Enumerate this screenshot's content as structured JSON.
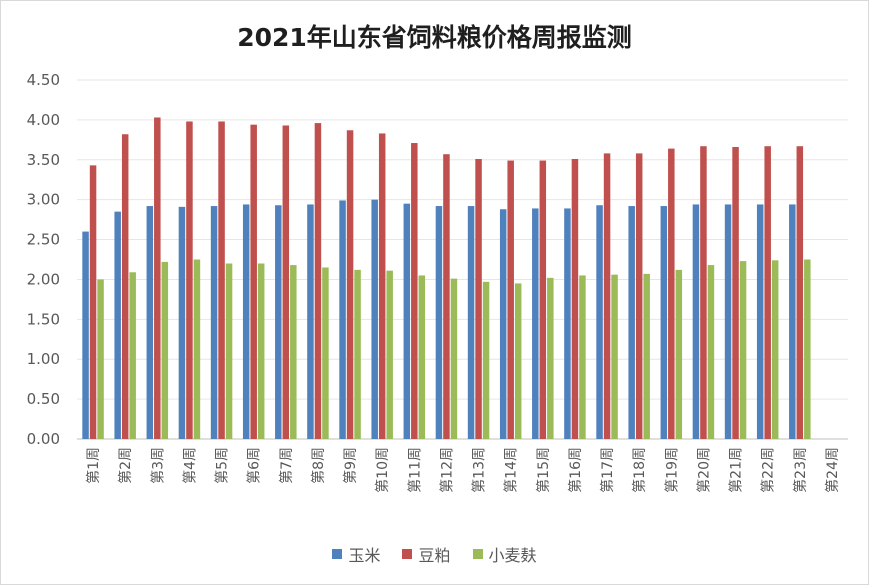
{
  "chart_data": {
    "type": "bar",
    "title": "2021年山东省饲料粮价格周报监测",
    "xlabel": "",
    "ylabel": "",
    "ylim": [
      0,
      4.5
    ],
    "ytick_step": 0.5,
    "yticks": [
      "0.00",
      "0.50",
      "1.00",
      "1.50",
      "2.00",
      "2.50",
      "3.00",
      "3.50",
      "4.00",
      "4.50"
    ],
    "grid": true,
    "legend_position": "bottom",
    "categories": [
      "第1周",
      "第2周",
      "第3周",
      "第4周",
      "第5周",
      "第6周",
      "第7周",
      "第8周",
      "第9周",
      "第10周",
      "第11周",
      "第12周",
      "第13周",
      "第14周",
      "第15周",
      "第16周",
      "第17周",
      "第18周",
      "第19周",
      "第20周",
      "第21周",
      "第22周",
      "第23周",
      "第24周"
    ],
    "series": [
      {
        "name": "玉米",
        "color": "#4f81bd",
        "values": [
          2.6,
          2.85,
          2.92,
          2.91,
          2.92,
          2.94,
          2.93,
          2.94,
          2.99,
          3.0,
          2.95,
          2.92,
          2.92,
          2.88,
          2.89,
          2.89,
          2.93,
          2.92,
          2.92,
          2.94,
          2.94,
          2.94,
          2.94,
          null
        ]
      },
      {
        "name": "豆粕",
        "color": "#c0504d",
        "values": [
          3.43,
          3.82,
          4.03,
          3.98,
          3.98,
          3.94,
          3.93,
          3.96,
          3.87,
          3.83,
          3.71,
          3.57,
          3.51,
          3.49,
          3.49,
          3.51,
          3.58,
          3.58,
          3.64,
          3.67,
          3.66,
          3.67,
          3.67,
          null
        ]
      },
      {
        "name": "小麦麸",
        "color": "#9bbb59",
        "values": [
          2.0,
          2.09,
          2.22,
          2.25,
          2.2,
          2.2,
          2.18,
          2.15,
          2.12,
          2.11,
          2.05,
          2.01,
          1.97,
          1.95,
          2.02,
          2.05,
          2.06,
          2.07,
          2.12,
          2.18,
          2.23,
          2.24,
          2.25,
          null
        ]
      }
    ]
  }
}
